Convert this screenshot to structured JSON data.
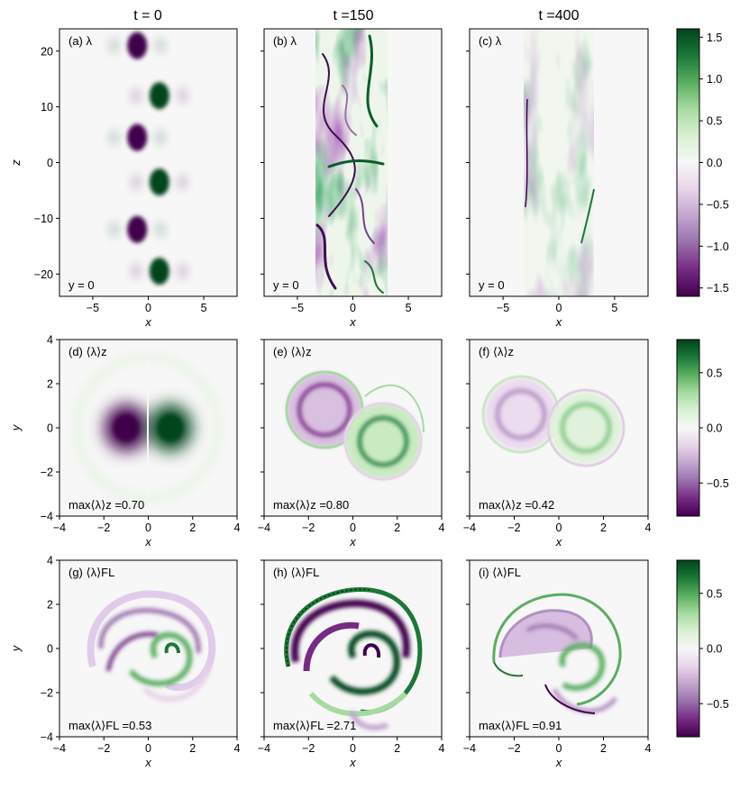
{
  "chart_data": {
    "type": "heatmap",
    "colormap": "PRGn",
    "colors": {
      "neg": "#40004b",
      "mid": "#f7f7f7",
      "pos": "#00441b"
    },
    "column_titles": [
      "t = 0",
      "t =150",
      "t =400"
    ],
    "rows": [
      {
        "xlabel": "x",
        "ylabel": "z",
        "xticks": [
          "−5",
          "0",
          "5"
        ],
        "yticks": [
          "20",
          "10",
          "0",
          "−10",
          "−20"
        ],
        "xlim": [
          -8,
          8
        ],
        "ylim": [
          -24,
          24
        ],
        "colorbar": {
          "range": [
            -1.6,
            1.6
          ],
          "ticks": [
            "1.5",
            "1.0",
            "0.5",
            "0.0",
            "−0.5",
            "−1.0",
            "−1.5"
          ]
        },
        "panels": [
          {
            "label": "(a) λ",
            "annotation": "y = 0",
            "features": [
              {
                "x": -1,
                "z": 21,
                "amp": -1.6
              },
              {
                "x": 1,
                "z": 12,
                "amp": 1.6
              },
              {
                "x": -1,
                "z": 4.5,
                "amp": -1.6
              },
              {
                "x": 1,
                "z": -3.5,
                "amp": 1.6
              },
              {
                "x": -1,
                "z": -12,
                "amp": -1.6
              },
              {
                "x": 1,
                "z": -19.5,
                "amp": 1.6
              }
            ]
          },
          {
            "label": "(b) λ",
            "annotation": "y = 0",
            "turbulent_band_x": [
              -3.5,
              3
            ]
          },
          {
            "label": "(c) λ",
            "annotation": "y = 0",
            "turbulent_band_x": [
              -3.5,
              3
            ]
          }
        ]
      },
      {
        "xlabel": "x",
        "ylabel": "y",
        "xticks": [
          "−4",
          "−2",
          "0",
          "2",
          "4"
        ],
        "yticks": [
          "4",
          "2",
          "0",
          "−2",
          "−4"
        ],
        "xlim": [
          -4,
          4
        ],
        "ylim": [
          -4,
          4
        ],
        "colorbar": {
          "range": [
            -0.8,
            0.8
          ],
          "ticks": [
            "0.5",
            "0.0",
            "−0.5"
          ]
        },
        "panels": [
          {
            "label": "(d) ⟨λ⟩z",
            "annotation": "max⟨λ⟩z =0.70",
            "max_value": 0.7
          },
          {
            "label": "(e) ⟨λ⟩z",
            "annotation": "max⟨λ⟩z =0.80",
            "max_value": 0.8
          },
          {
            "label": "(f) ⟨λ⟩z",
            "annotation": "max⟨λ⟩z =0.42",
            "max_value": 0.42
          }
        ]
      },
      {
        "xlabel": "x",
        "ylabel": "y",
        "xticks": [
          "−4",
          "−2",
          "0",
          "2",
          "4"
        ],
        "yticks": [
          "4",
          "2",
          "0",
          "−2",
          "−4"
        ],
        "xlim": [
          -4,
          4
        ],
        "ylim": [
          -4,
          4
        ],
        "colorbar": {
          "range": [
            -0.8,
            0.8
          ],
          "ticks": [
            "0.5",
            "0.0",
            "−0.5"
          ]
        },
        "panels": [
          {
            "label": "(g) ⟨λ⟩FL",
            "annotation": "max⟨λ⟩FL =0.53",
            "max_value": 0.53
          },
          {
            "label": "(h) ⟨λ⟩FL",
            "annotation": "max⟨λ⟩FL =2.71",
            "max_value": 2.71
          },
          {
            "label": "(i) ⟨λ⟩FL",
            "annotation": "max⟨λ⟩FL =0.91",
            "max_value": 0.91
          }
        ]
      }
    ]
  }
}
